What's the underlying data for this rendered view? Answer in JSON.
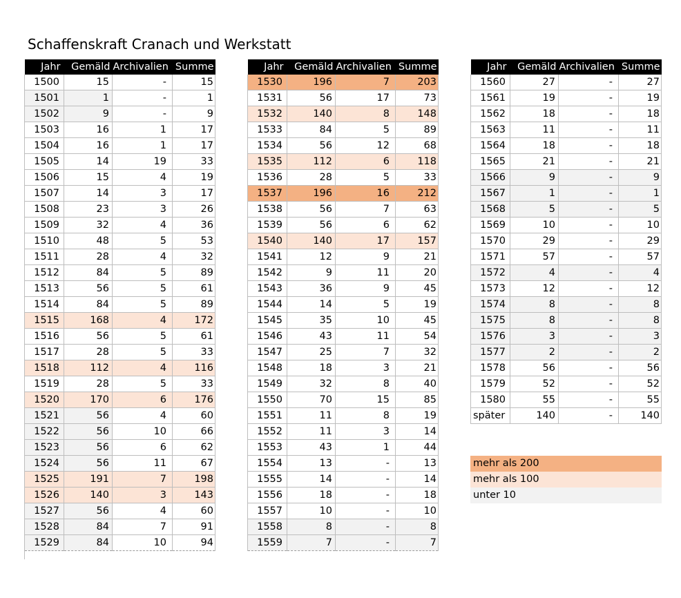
{
  "title": "Schaffenskraft Cranach und Werkstatt",
  "headers": [
    "Jahr",
    "Gemäld",
    "Archivalien",
    "Summe"
  ],
  "colors": {
    "over200": "#f4b183",
    "over100": "#fce4d6",
    "under10": "#f2f2f2"
  },
  "tables": [
    {
      "rows": [
        {
          "jahr": "1500",
          "gemaeld": "15",
          "archivalien": "-",
          "summe": "15",
          "hl": ""
        },
        {
          "jahr": "1501",
          "gemaeld": "1",
          "archivalien": "-",
          "summe": "1",
          "hl": "lo10"
        },
        {
          "jahr": "1502",
          "gemaeld": "9",
          "archivalien": "-",
          "summe": "9",
          "hl": "lo10"
        },
        {
          "jahr": "1503",
          "gemaeld": "16",
          "archivalien": "1",
          "summe": "17",
          "hl": ""
        },
        {
          "jahr": "1504",
          "gemaeld": "16",
          "archivalien": "1",
          "summe": "17",
          "hl": ""
        },
        {
          "jahr": "1505",
          "gemaeld": "14",
          "archivalien": "19",
          "summe": "33",
          "hl": ""
        },
        {
          "jahr": "1506",
          "gemaeld": "15",
          "archivalien": "4",
          "summe": "19",
          "hl": ""
        },
        {
          "jahr": "1507",
          "gemaeld": "14",
          "archivalien": "3",
          "summe": "17",
          "hl": ""
        },
        {
          "jahr": "1508",
          "gemaeld": "23",
          "archivalien": "3",
          "summe": "26",
          "hl": ""
        },
        {
          "jahr": "1509",
          "gemaeld": "32",
          "archivalien": "4",
          "summe": "36",
          "hl": ""
        },
        {
          "jahr": "1510",
          "gemaeld": "48",
          "archivalien": "5",
          "summe": "53",
          "hl": ""
        },
        {
          "jahr": "1511",
          "gemaeld": "28",
          "archivalien": "4",
          "summe": "32",
          "hl": ""
        },
        {
          "jahr": "1512",
          "gemaeld": "84",
          "archivalien": "5",
          "summe": "89",
          "hl": ""
        },
        {
          "jahr": "1513",
          "gemaeld": "56",
          "archivalien": "5",
          "summe": "61",
          "hl": ""
        },
        {
          "jahr": "1514",
          "gemaeld": "84",
          "archivalien": "5",
          "summe": "89",
          "hl": ""
        },
        {
          "jahr": "1515",
          "gemaeld": "168",
          "archivalien": "4",
          "summe": "172",
          "hl": "hi100"
        },
        {
          "jahr": "1516",
          "gemaeld": "56",
          "archivalien": "5",
          "summe": "61",
          "hl": ""
        },
        {
          "jahr": "1517",
          "gemaeld": "28",
          "archivalien": "5",
          "summe": "33",
          "hl": ""
        },
        {
          "jahr": "1518",
          "gemaeld": "112",
          "archivalien": "4",
          "summe": "116",
          "hl": "hi100"
        },
        {
          "jahr": "1519",
          "gemaeld": "28",
          "archivalien": "5",
          "summe": "33",
          "hl": ""
        },
        {
          "jahr": "1520",
          "gemaeld": "170",
          "archivalien": "6",
          "summe": "176",
          "hl": "hi100"
        },
        {
          "jahr": "1521",
          "gemaeld": "56",
          "archivalien": "4",
          "summe": "60",
          "hl": "lo10"
        },
        {
          "jahr": "1522",
          "gemaeld": "56",
          "archivalien": "10",
          "summe": "66",
          "hl": "lo10"
        },
        {
          "jahr": "1523",
          "gemaeld": "56",
          "archivalien": "6",
          "summe": "62",
          "hl": "lo10"
        },
        {
          "jahr": "1524",
          "gemaeld": "56",
          "archivalien": "11",
          "summe": "67",
          "hl": "lo10"
        },
        {
          "jahr": "1525",
          "gemaeld": "191",
          "archivalien": "7",
          "summe": "198",
          "hl": "hi100"
        },
        {
          "jahr": "1526",
          "gemaeld": "140",
          "archivalien": "3",
          "summe": "143",
          "hl": "hi100"
        },
        {
          "jahr": "1527",
          "gemaeld": "56",
          "archivalien": "4",
          "summe": "60",
          "hl": "lo10"
        },
        {
          "jahr": "1528",
          "gemaeld": "84",
          "archivalien": "7",
          "summe": "91",
          "hl": "lo10"
        },
        {
          "jahr": "1529",
          "gemaeld": "84",
          "archivalien": "10",
          "summe": "94",
          "hl": "lo10"
        }
      ]
    },
    {
      "rows": [
        {
          "jahr": "1530",
          "gemaeld": "196",
          "archivalien": "7",
          "summe": "203",
          "hl": "hi200"
        },
        {
          "jahr": "1531",
          "gemaeld": "56",
          "archivalien": "17",
          "summe": "73",
          "hl": ""
        },
        {
          "jahr": "1532",
          "gemaeld": "140",
          "archivalien": "8",
          "summe": "148",
          "hl": "hi100"
        },
        {
          "jahr": "1533",
          "gemaeld": "84",
          "archivalien": "5",
          "summe": "89",
          "hl": ""
        },
        {
          "jahr": "1534",
          "gemaeld": "56",
          "archivalien": "12",
          "summe": "68",
          "hl": ""
        },
        {
          "jahr": "1535",
          "gemaeld": "112",
          "archivalien": "6",
          "summe": "118",
          "hl": "hi100"
        },
        {
          "jahr": "1536",
          "gemaeld": "28",
          "archivalien": "5",
          "summe": "33",
          "hl": ""
        },
        {
          "jahr": "1537",
          "gemaeld": "196",
          "archivalien": "16",
          "summe": "212",
          "hl": "hi200"
        },
        {
          "jahr": "1538",
          "gemaeld": "56",
          "archivalien": "7",
          "summe": "63",
          "hl": ""
        },
        {
          "jahr": "1539",
          "gemaeld": "56",
          "archivalien": "6",
          "summe": "62",
          "hl": ""
        },
        {
          "jahr": "1540",
          "gemaeld": "140",
          "archivalien": "17",
          "summe": "157",
          "hl": "hi100"
        },
        {
          "jahr": "1541",
          "gemaeld": "12",
          "archivalien": "9",
          "summe": "21",
          "hl": ""
        },
        {
          "jahr": "1542",
          "gemaeld": "9",
          "archivalien": "11",
          "summe": "20",
          "hl": ""
        },
        {
          "jahr": "1543",
          "gemaeld": "36",
          "archivalien": "9",
          "summe": "45",
          "hl": ""
        },
        {
          "jahr": "1544",
          "gemaeld": "14",
          "archivalien": "5",
          "summe": "19",
          "hl": ""
        },
        {
          "jahr": "1545",
          "gemaeld": "35",
          "archivalien": "10",
          "summe": "45",
          "hl": ""
        },
        {
          "jahr": "1546",
          "gemaeld": "43",
          "archivalien": "11",
          "summe": "54",
          "hl": ""
        },
        {
          "jahr": "1547",
          "gemaeld": "25",
          "archivalien": "7",
          "summe": "32",
          "hl": ""
        },
        {
          "jahr": "1548",
          "gemaeld": "18",
          "archivalien": "3",
          "summe": "21",
          "hl": ""
        },
        {
          "jahr": "1549",
          "gemaeld": "32",
          "archivalien": "8",
          "summe": "40",
          "hl": ""
        },
        {
          "jahr": "1550",
          "gemaeld": "70",
          "archivalien": "15",
          "summe": "85",
          "hl": ""
        },
        {
          "jahr": "1551",
          "gemaeld": "11",
          "archivalien": "8",
          "summe": "19",
          "hl": ""
        },
        {
          "jahr": "1552",
          "gemaeld": "11",
          "archivalien": "3",
          "summe": "14",
          "hl": ""
        },
        {
          "jahr": "1553",
          "gemaeld": "43",
          "archivalien": "1",
          "summe": "44",
          "hl": ""
        },
        {
          "jahr": "1554",
          "gemaeld": "13",
          "archivalien": "-",
          "summe": "13",
          "hl": ""
        },
        {
          "jahr": "1555",
          "gemaeld": "14",
          "archivalien": "-",
          "summe": "14",
          "hl": ""
        },
        {
          "jahr": "1556",
          "gemaeld": "18",
          "archivalien": "-",
          "summe": "18",
          "hl": ""
        },
        {
          "jahr": "1557",
          "gemaeld": "10",
          "archivalien": "-",
          "summe": "10",
          "hl": ""
        },
        {
          "jahr": "1558",
          "gemaeld": "8",
          "archivalien": "-",
          "summe": "8",
          "hl": "lo10 full"
        },
        {
          "jahr": "1559",
          "gemaeld": "7",
          "archivalien": "-",
          "summe": "7",
          "hl": "lo10 full"
        }
      ]
    },
    {
      "rows": [
        {
          "jahr": "1560",
          "gemaeld": "27",
          "archivalien": "-",
          "summe": "27",
          "hl": ""
        },
        {
          "jahr": "1561",
          "gemaeld": "19",
          "archivalien": "-",
          "summe": "19",
          "hl": ""
        },
        {
          "jahr": "1562",
          "gemaeld": "18",
          "archivalien": "-",
          "summe": "18",
          "hl": ""
        },
        {
          "jahr": "1563",
          "gemaeld": "11",
          "archivalien": "-",
          "summe": "11",
          "hl": ""
        },
        {
          "jahr": "1564",
          "gemaeld": "18",
          "archivalien": "-",
          "summe": "18",
          "hl": ""
        },
        {
          "jahr": "1565",
          "gemaeld": "21",
          "archivalien": "-",
          "summe": "21",
          "hl": ""
        },
        {
          "jahr": "1566",
          "gemaeld": "9",
          "archivalien": "-",
          "summe": "9",
          "hl": "lo10 full"
        },
        {
          "jahr": "1567",
          "gemaeld": "1",
          "archivalien": "-",
          "summe": "1",
          "hl": "lo10 full"
        },
        {
          "jahr": "1568",
          "gemaeld": "5",
          "archivalien": "-",
          "summe": "5",
          "hl": "lo10 full"
        },
        {
          "jahr": "1569",
          "gemaeld": "10",
          "archivalien": "-",
          "summe": "10",
          "hl": ""
        },
        {
          "jahr": "1570",
          "gemaeld": "29",
          "archivalien": "-",
          "summe": "29",
          "hl": ""
        },
        {
          "jahr": "1571",
          "gemaeld": "57",
          "archivalien": "-",
          "summe": "57",
          "hl": ""
        },
        {
          "jahr": "1572",
          "gemaeld": "4",
          "archivalien": "-",
          "summe": "4",
          "hl": "lo10 full"
        },
        {
          "jahr": "1573",
          "gemaeld": "12",
          "archivalien": "-",
          "summe": "12",
          "hl": ""
        },
        {
          "jahr": "1574",
          "gemaeld": "8",
          "archivalien": "-",
          "summe": "8",
          "hl": "lo10 full"
        },
        {
          "jahr": "1575",
          "gemaeld": "8",
          "archivalien": "-",
          "summe": "8",
          "hl": "lo10 full"
        },
        {
          "jahr": "1576",
          "gemaeld": "3",
          "archivalien": "-",
          "summe": "3",
          "hl": "lo10 full"
        },
        {
          "jahr": "1577",
          "gemaeld": "2",
          "archivalien": "-",
          "summe": "2",
          "hl": "lo10 full"
        },
        {
          "jahr": "1578",
          "gemaeld": "56",
          "archivalien": "-",
          "summe": "56",
          "hl": ""
        },
        {
          "jahr": "1579",
          "gemaeld": "52",
          "archivalien": "-",
          "summe": "52",
          "hl": ""
        },
        {
          "jahr": "1580",
          "gemaeld": "55",
          "archivalien": "-",
          "summe": "55",
          "hl": ""
        },
        {
          "jahr": "später",
          "gemaeld": "140",
          "archivalien": "-",
          "summe": "140",
          "hl": "",
          "pad": true
        }
      ]
    }
  ],
  "legend": [
    {
      "label": "mehr als 200",
      "color": "#f4b183"
    },
    {
      "label": "mehr als 100",
      "color": "#fce4d6"
    },
    {
      "label": "unter 10",
      "color": "#f2f2f2"
    }
  ]
}
